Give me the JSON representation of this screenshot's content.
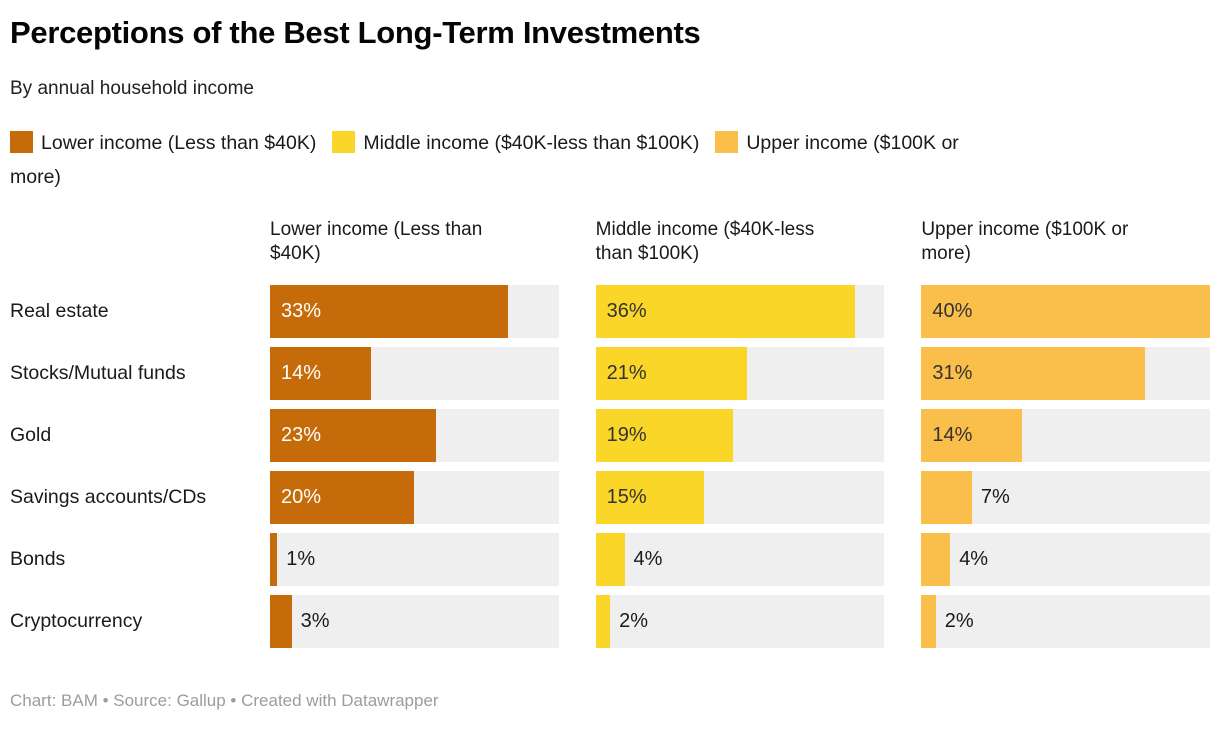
{
  "header": {
    "title": "Perceptions of the Best Long-Term Investments",
    "subtitle": "By annual household income"
  },
  "legend": {
    "items": [
      {
        "label": "Lower income (Less than $40K)",
        "color": "#C66B09"
      },
      {
        "label": "Middle income ($40K-less than $100K)",
        "color": "#FAD628"
      },
      {
        "label": "Upper income ($100K or more)",
        "color": "#FABE4B"
      }
    ]
  },
  "chart_data": {
    "type": "bar",
    "orientation": "horizontal",
    "layout": "small-multiples-grouped-columns",
    "title": "Perceptions of the Best Long-Term Investments",
    "subtitle": "By annual household income",
    "categories": [
      "Real estate",
      "Stocks/Mutual funds",
      "Gold",
      "Savings accounts/CDs",
      "Bonds",
      "Cryptocurrency"
    ],
    "series": [
      {
        "name": "Lower income (Less than $40K)",
        "color": "#C66B09",
        "value_label_color_inside": "#ffffff",
        "values": [
          33,
          14,
          23,
          20,
          1,
          3
        ]
      },
      {
        "name": "Middle income ($40K-less than $100K)",
        "color": "#FAD628",
        "value_label_color_inside": "#333333",
        "values": [
          36,
          21,
          19,
          15,
          4,
          2
        ]
      },
      {
        "name": "Upper income ($100K or more)",
        "color": "#FABE4B",
        "value_label_color_inside": "#333333",
        "values": [
          40,
          31,
          14,
          7,
          4,
          2
        ]
      }
    ],
    "value_suffix": "%",
    "xlim": [
      0,
      40
    ],
    "track_color": "#EFEFEF",
    "inside_label_min_value": 10,
    "grid": false,
    "legend_position": "top"
  },
  "footer": {
    "text": "Chart: BAM • Source: Gallup • Created with Datawrapper"
  }
}
